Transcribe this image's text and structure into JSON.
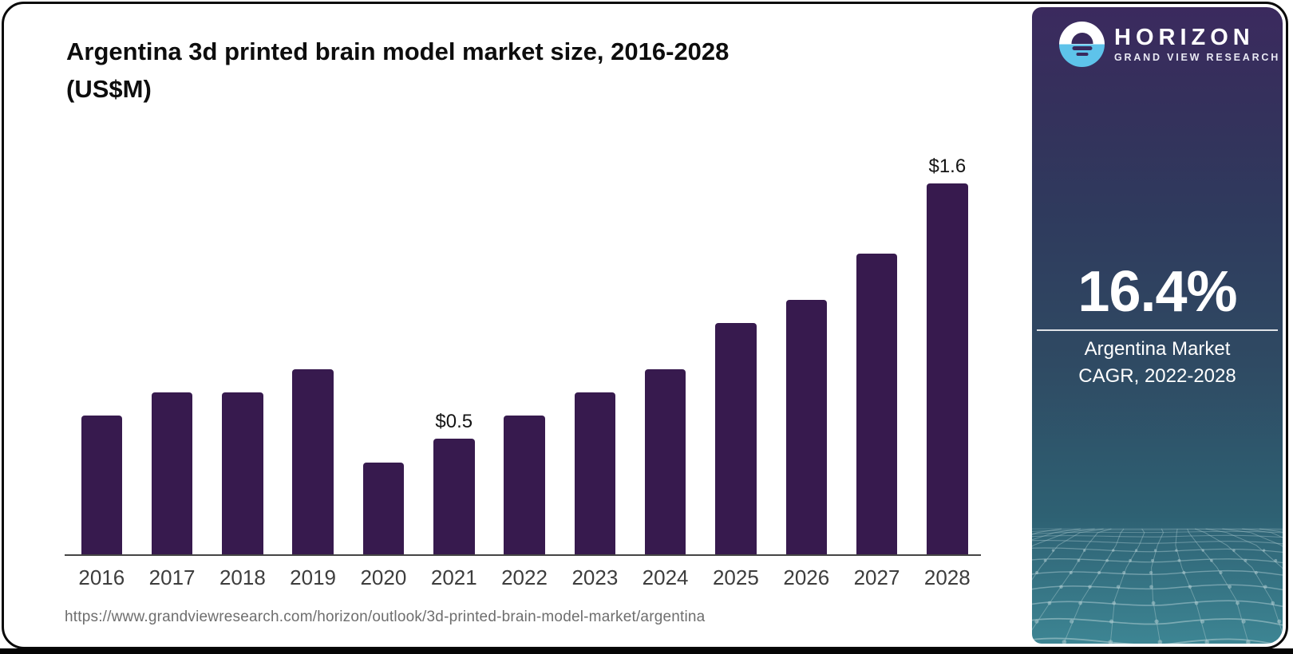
{
  "title_lines": [
    "Argentina 3d printed brain model market size, 2016-2028",
    "(US$M)"
  ],
  "source_url": "https://www.grandviewresearch.com/horizon/outlook/3d-printed-brain-model-market/argentina",
  "sidebar": {
    "brand": "HORIZON",
    "brand_sub": "GRAND VIEW RESEARCH",
    "cagr_value": "16.4%",
    "cagr_label_line1": "Argentina Market",
    "cagr_label_line2": "CAGR, 2022-2028"
  },
  "colors": {
    "bar": "#371a4e",
    "logo_blue": "#5ec3ea",
    "panel_top": "#3b2a5e",
    "panel_bottom": "#3d8593"
  },
  "chart_data": {
    "type": "bar",
    "title": "Argentina 3d printed brain model market size, 2016-2028 (US$M)",
    "categories": [
      "2016",
      "2017",
      "2018",
      "2019",
      "2020",
      "2021",
      "2022",
      "2023",
      "2024",
      "2025",
      "2026",
      "2027",
      "2028"
    ],
    "values": [
      0.6,
      0.7,
      0.7,
      0.8,
      0.4,
      0.5,
      0.6,
      0.7,
      0.8,
      1.0,
      1.1,
      1.3,
      1.6
    ],
    "value_labels": [
      null,
      null,
      null,
      null,
      null,
      "$0.5",
      null,
      null,
      null,
      null,
      null,
      null,
      "$1.6"
    ],
    "xlabel": "",
    "ylabel": "US$M",
    "ylim": [
      0,
      1.75
    ],
    "grid": false,
    "legend": null,
    "bar_color": "#371a4e"
  }
}
